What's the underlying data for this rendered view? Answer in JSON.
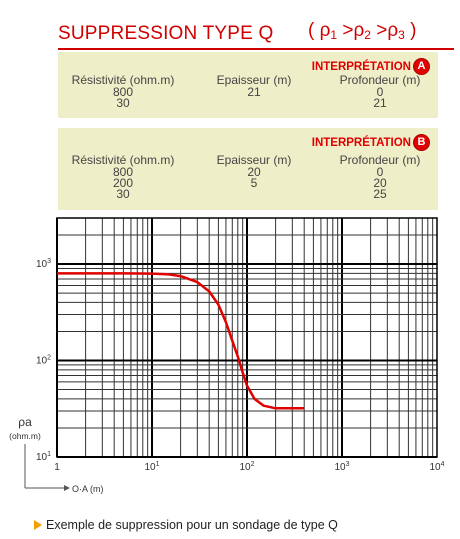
{
  "title": {
    "main": "SUPPRESSION TYPE Q",
    "relation": [
      "ρ",
      "1",
      " >ρ",
      "2",
      " >ρ",
      "3"
    ]
  },
  "interpretation_a": {
    "label": "INTERPRÉTATION",
    "letter": "A",
    "headers": [
      "Résistivité (ohm.m)",
      "Epaisseur (m)",
      "Profondeur (m)"
    ],
    "resistivity": [
      "800",
      "30"
    ],
    "thickness": [
      "21"
    ],
    "depth": [
      "0",
      "21"
    ]
  },
  "interpretation_b": {
    "label": "INTERPRÉTATION",
    "letter": "B",
    "headers": [
      "Résistivité (ohm.m)",
      "Epaisseur (m)",
      "Profondeur (m)"
    ],
    "resistivity": [
      "800",
      "200",
      "30"
    ],
    "thickness": [
      "20",
      "5"
    ],
    "depth": [
      "0",
      "20",
      "25"
    ]
  },
  "chart_data": {
    "type": "line",
    "x_scale": "log",
    "y_scale": "log",
    "xlim": [
      1,
      10000
    ],
    "ylim": [
      10,
      3000
    ],
    "x_ticks": [
      {
        "value": 1,
        "base": "1",
        "exp": ""
      },
      {
        "value": 10,
        "base": "10",
        "exp": "1"
      },
      {
        "value": 100,
        "base": "10",
        "exp": "2"
      },
      {
        "value": 1000,
        "base": "10",
        "exp": "3"
      },
      {
        "value": 10000,
        "base": "10",
        "exp": "4"
      }
    ],
    "y_ticks": [
      {
        "value": 10,
        "base": "10",
        "exp": "1"
      },
      {
        "value": 100,
        "base": "10",
        "exp": "2"
      },
      {
        "value": 1000,
        "base": "10",
        "exp": "3"
      }
    ],
    "ylabel_symbol": "ρa",
    "ylabel_unit": "(ohm.m)",
    "xlabel": "O·A (m)",
    "grid": true,
    "series": [
      {
        "color": "#e00000",
        "x": [
          1,
          5,
          10,
          15,
          20,
          30,
          40,
          50,
          60,
          70,
          80,
          90,
          100,
          120,
          150,
          200,
          300,
          400
        ],
        "y": [
          800,
          800,
          795,
          780,
          750,
          650,
          520,
          380,
          250,
          160,
          110,
          75,
          55,
          40,
          34,
          32,
          32,
          32
        ]
      }
    ]
  },
  "caption": "Exemple de suppression pour un sondage de type Q"
}
